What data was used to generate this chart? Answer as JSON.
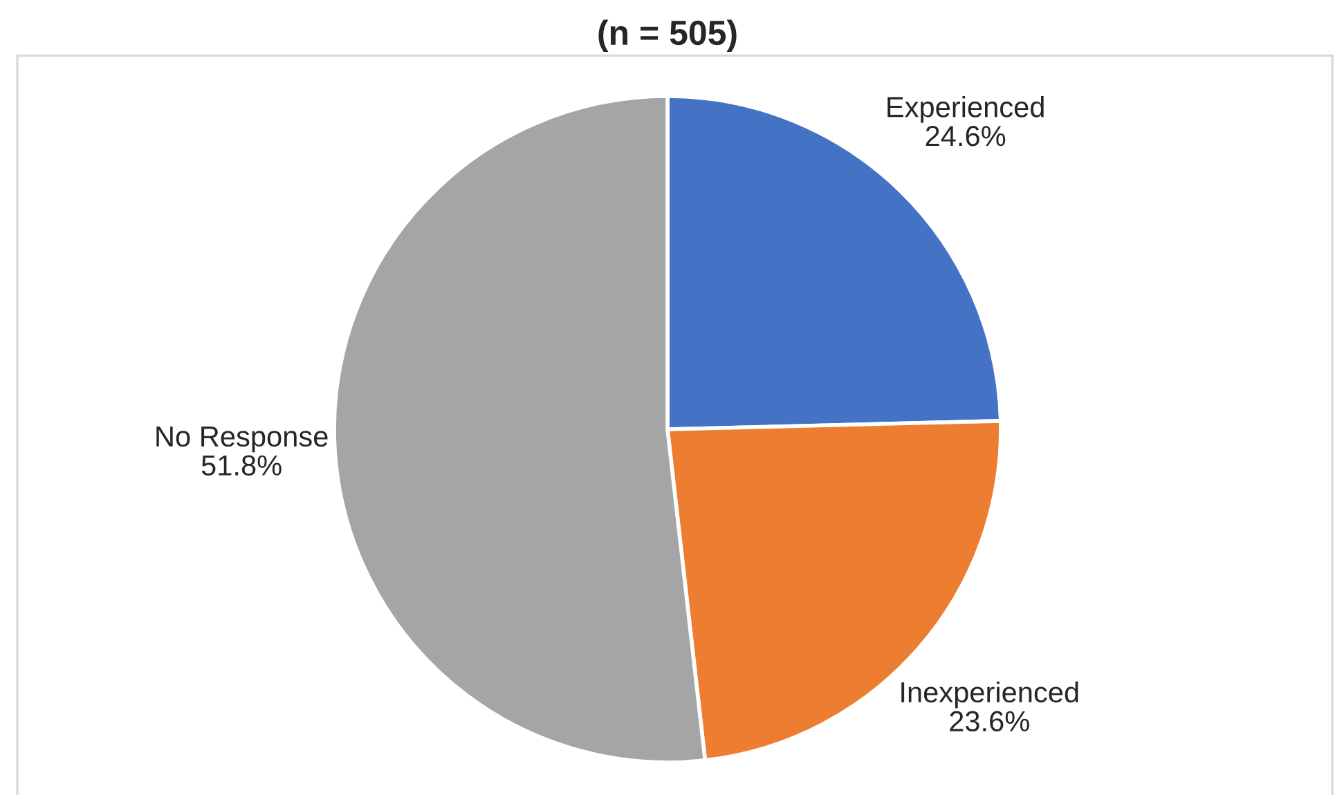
{
  "chart_data": {
    "type": "pie",
    "title": "(n = 505)",
    "categories": [
      "Experienced",
      "Inexperienced",
      "No Response"
    ],
    "values": [
      24.6,
      23.6,
      51.8
    ],
    "colors": [
      "#4472c4",
      "#ed7d31",
      "#a5a5a5"
    ],
    "value_labels": [
      "24.6%",
      "23.6%",
      "51.8%"
    ]
  }
}
